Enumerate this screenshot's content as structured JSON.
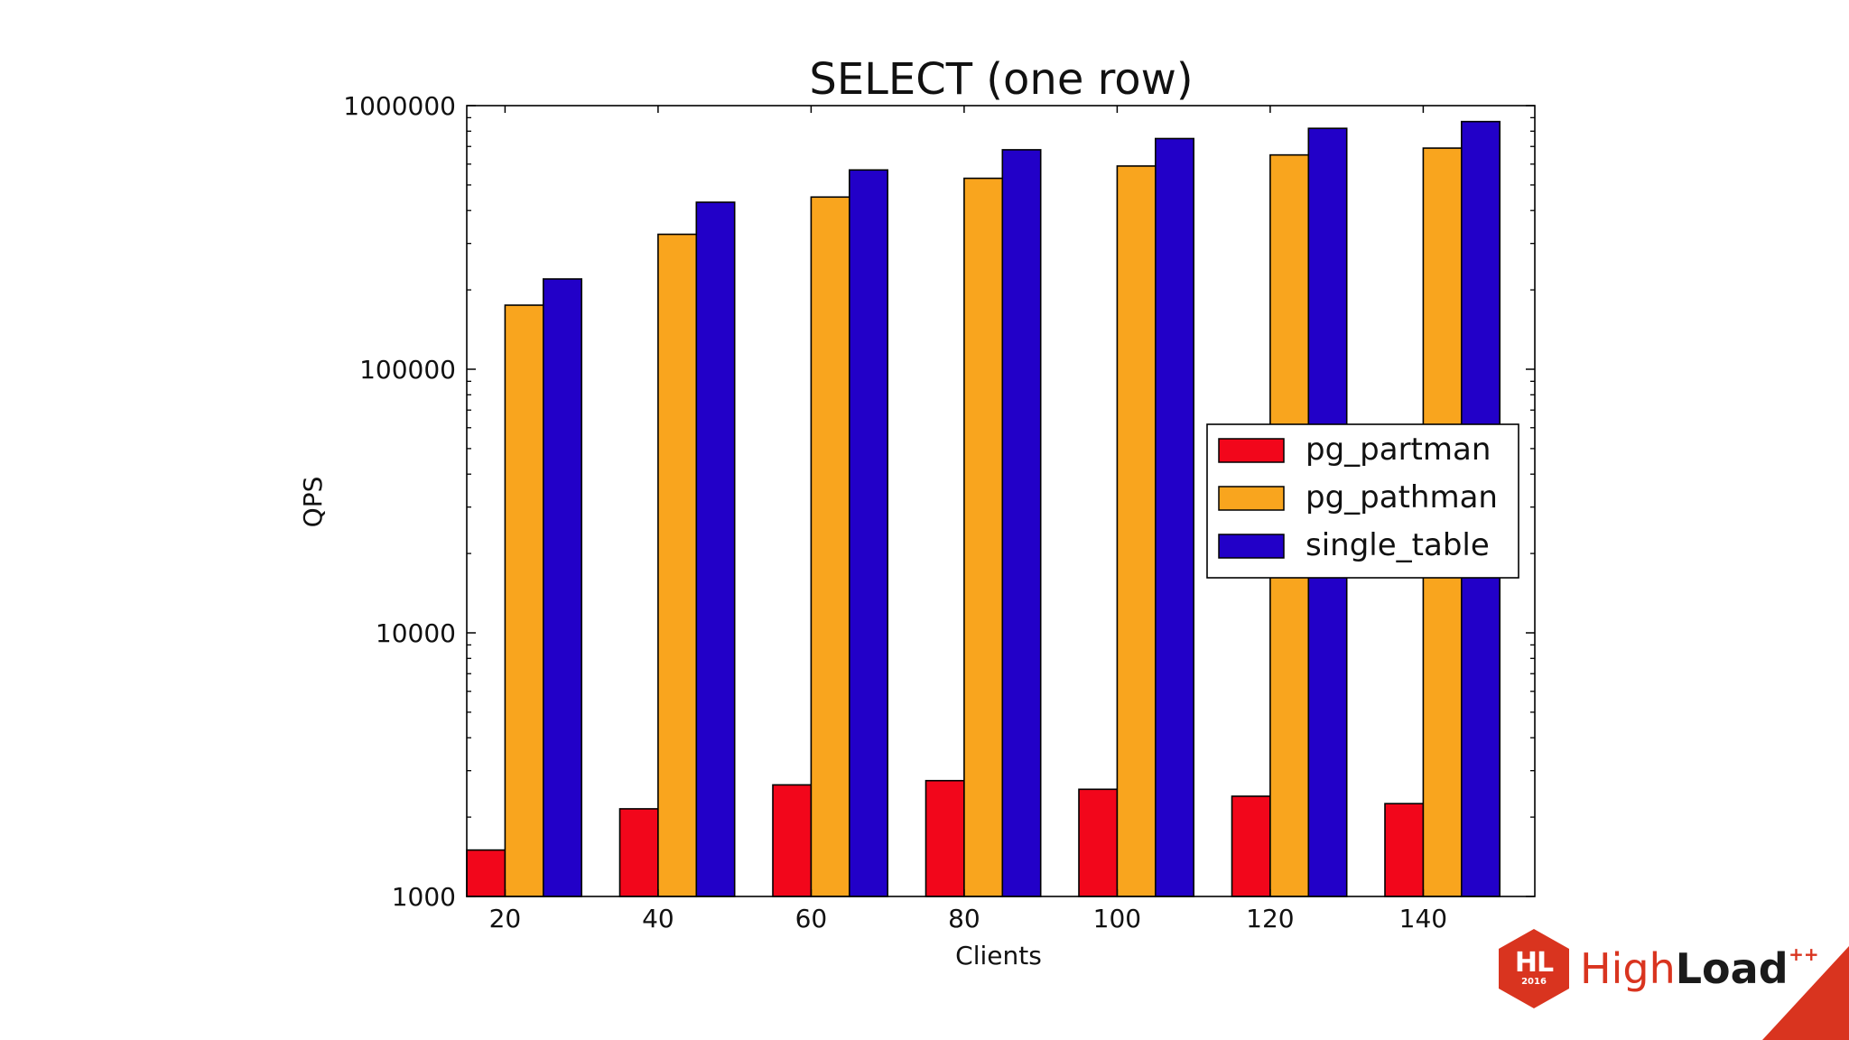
{
  "chart_data": {
    "type": "bar",
    "title": "SELECT (one row)",
    "xlabel": "Clients",
    "ylabel": "QPS",
    "yscale": "log",
    "ylim": [
      1000,
      1000000
    ],
    "yticks": [
      1000,
      10000,
      100000,
      1000000
    ],
    "ytick_labels": [
      "1000",
      "10000",
      "100000",
      "1000000"
    ],
    "categories": [
      "20",
      "40",
      "60",
      "80",
      "100",
      "120",
      "140"
    ],
    "legend_position": "center-right",
    "grid": false,
    "series": [
      {
        "name": "pg_partman",
        "color": "#f2061b",
        "values": [
          1500,
          2150,
          2650,
          2750,
          2550,
          2400,
          2250
        ]
      },
      {
        "name": "pg_pathman",
        "color": "#f9a51e",
        "values": [
          175000,
          325000,
          450000,
          530000,
          590000,
          650000,
          690000
        ]
      },
      {
        "name": "single_table",
        "color": "#2200c8",
        "values": [
          220000,
          430000,
          570000,
          680000,
          750000,
          820000,
          870000
        ]
      }
    ]
  },
  "branding": {
    "logo_mark": "HL",
    "logo_year": "2016",
    "logo_word_light": "High",
    "logo_word_bold": "Load",
    "logo_superscript": "++",
    "accent_color": "#d9341f"
  }
}
